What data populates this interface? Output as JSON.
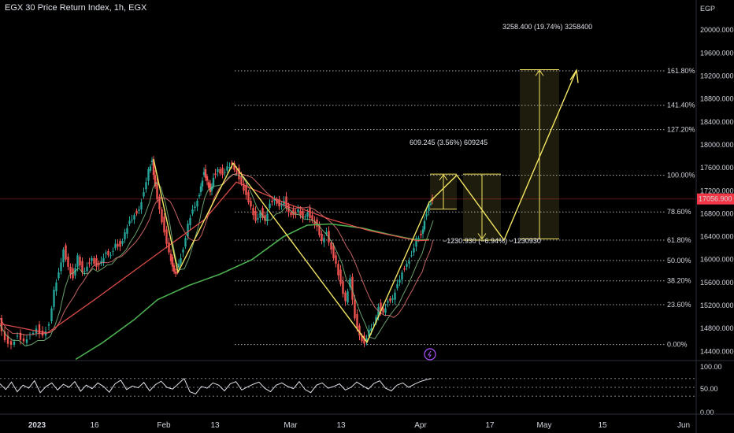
{
  "header": {
    "title": "EGX 30 Price Return Index, 1h, EGX"
  },
  "chart_data": {
    "type": "line",
    "currency": "EGP",
    "last_price": "17056.900",
    "y_ticks": [
      "20000.000",
      "19600.000",
      "19200.000",
      "18800.000",
      "18400.000",
      "18000.000",
      "17600.000",
      "17200.000",
      "16800.000",
      "16400.000",
      "16000.000",
      "15600.000",
      "15200.000",
      "14800.000",
      "14400.000"
    ],
    "y_tick_values": [
      20000,
      19600,
      19200,
      18800,
      18400,
      18000,
      17600,
      17200,
      16800,
      16400,
      16000,
      15600,
      15200,
      14800,
      14400
    ],
    "ylim": [
      14240,
      20250
    ],
    "x_ticks": [
      "2023",
      "16",
      "Feb",
      "13",
      "Mar",
      "13",
      "Apr",
      "17",
      "May",
      "15",
      "Jun"
    ],
    "fib_levels": [
      {
        "label": "0.00%",
        "value": 14520
      },
      {
        "label": "23.60%",
        "value": 15215
      },
      {
        "label": "38.20%",
        "value": 15630
      },
      {
        "label": "50.00%",
        "value": 15985
      },
      {
        "label": "61.80%",
        "value": 16340
      },
      {
        "label": "78.60%",
        "value": 16830
      },
      {
        "label": "100.00%",
        "value": 17470
      },
      {
        "label": "127.20%",
        "value": 18265
      },
      {
        "label": "141.40%",
        "value": 18690
      },
      {
        "label": "161.80%",
        "value": 19290
      }
    ],
    "annotations": [
      {
        "text": "609.245 (3.56%) 609245"
      },
      {
        "text": "−1230.930 (−6.94%) −1230930"
      },
      {
        "text": "3258.400 (19.74%) 3258400"
      }
    ],
    "price_path": [
      [
        0,
        14980
      ],
      [
        8,
        14620
      ],
      [
        16,
        14540
      ],
      [
        24,
        14700
      ],
      [
        32,
        14600
      ],
      [
        40,
        14720
      ],
      [
        48,
        14820
      ],
      [
        56,
        14700
      ],
      [
        64,
        14900
      ],
      [
        70,
        15500
      ],
      [
        76,
        15800
      ],
      [
        82,
        16200
      ],
      [
        88,
        15900
      ],
      [
        94,
        15700
      ],
      [
        100,
        16100
      ],
      [
        106,
        15800
      ],
      [
        112,
        15900
      ],
      [
        118,
        16050
      ],
      [
        124,
        15900
      ],
      [
        130,
        16000
      ],
      [
        136,
        16150
      ],
      [
        142,
        16100
      ],
      [
        148,
        16300
      ],
      [
        154,
        16250
      ],
      [
        160,
        16500
      ],
      [
        166,
        16700
      ],
      [
        172,
        16800
      ],
      [
        178,
        16900
      ],
      [
        184,
        17200
      ],
      [
        190,
        17600
      ],
      [
        194,
        17750
      ],
      [
        198,
        17300
      ],
      [
        204,
        16900
      ],
      [
        210,
        16500
      ],
      [
        216,
        16150
      ],
      [
        220,
        15900
      ],
      [
        224,
        15780
      ],
      [
        228,
        15950
      ],
      [
        234,
        16200
      ],
      [
        240,
        16650
      ],
      [
        246,
        16900
      ],
      [
        252,
        17050
      ],
      [
        256,
        17300
      ],
      [
        260,
        17550
      ],
      [
        264,
        17400
      ],
      [
        268,
        17200
      ],
      [
        272,
        17450
      ],
      [
        278,
        17600
      ],
      [
        284,
        17500
      ],
      [
        290,
        17650
      ],
      [
        296,
        17680
      ],
      [
        302,
        17550
      ],
      [
        308,
        17350
      ],
      [
        314,
        17150
      ],
      [
        320,
        16950
      ],
      [
        326,
        16700
      ],
      [
        332,
        16850
      ],
      [
        338,
        16700
      ],
      [
        344,
        17000
      ],
      [
        350,
        17100
      ],
      [
        356,
        16950
      ],
      [
        362,
        17050
      ],
      [
        368,
        16850
      ],
      [
        374,
        16800
      ],
      [
        380,
        16900
      ],
      [
        386,
        16750
      ],
      [
        392,
        16850
      ],
      [
        398,
        16700
      ],
      [
        404,
        16600
      ],
      [
        410,
        16350
      ],
      [
        416,
        16500
      ],
      [
        422,
        16200
      ],
      [
        428,
        15950
      ],
      [
        434,
        15600
      ],
      [
        440,
        15300
      ],
      [
        446,
        15700
      ],
      [
        452,
        15000
      ],
      [
        458,
        14700
      ],
      [
        464,
        14560
      ],
      [
        470,
        14800
      ],
      [
        476,
        14900
      ],
      [
        482,
        15200
      ],
      [
        488,
        15100
      ],
      [
        494,
        15300
      ],
      [
        500,
        15350
      ],
      [
        506,
        15600
      ],
      [
        512,
        15800
      ],
      [
        518,
        15950
      ],
      [
        524,
        16100
      ],
      [
        530,
        16400
      ],
      [
        536,
        16450
      ],
      [
        540,
        16700
      ],
      [
        546,
        17000
      ],
      [
        550,
        17050
      ]
    ],
    "rsi": {
      "levels": [
        "100.00",
        "50.00",
        "0.00"
      ],
      "values": [
        58,
        45,
        62,
        40,
        55,
        48,
        65,
        38,
        52,
        60,
        44,
        57,
        50,
        63,
        41,
        55,
        47,
        60,
        52,
        39,
        58,
        66,
        45,
        53,
        49,
        61,
        42,
        56,
        64,
        50,
        46,
        58,
        70,
        40,
        35,
        52,
        48,
        60,
        55,
        42,
        58,
        63,
        44,
        51,
        57,
        62,
        48,
        40,
        55,
        60,
        52,
        47,
        63,
        45,
        38,
        55,
        60,
        48,
        52,
        58,
        44,
        50,
        62,
        54,
        46,
        59,
        65,
        48,
        42,
        55,
        60,
        50,
        57,
        63,
        67,
        70
      ]
    }
  }
}
